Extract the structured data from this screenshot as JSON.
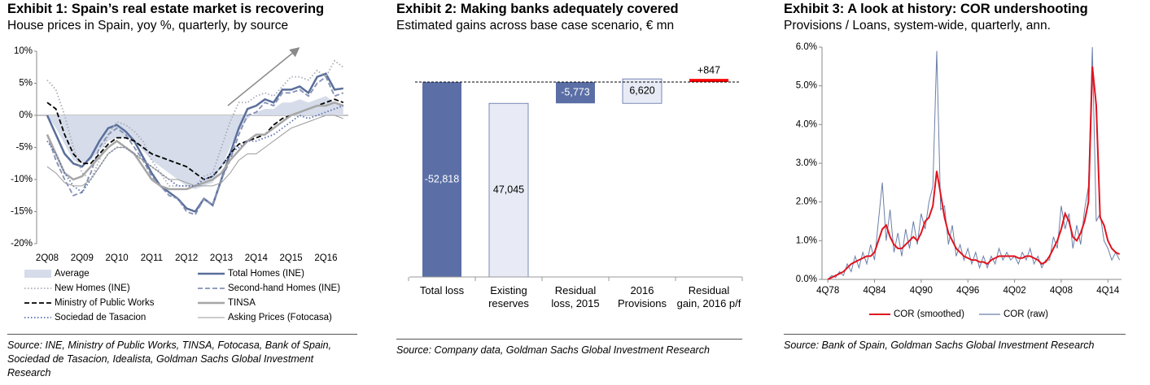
{
  "chart_data": [
    {
      "type": "line",
      "title": "Exhibit 1: Spain’s real estate market is recovering",
      "subtitle": "House prices in Spain, yoy %, quarterly, by source",
      "source": "Source: INE, Ministry of Public Works, TINSA, Fotocasa, Bank of Spain, Sociedad de Tasacion, Idealista, Goldman Sachs Global Investment Research",
      "categories": [
        "2Q08",
        null,
        null,
        null,
        "2Q09",
        null,
        null,
        null,
        "2Q10",
        null,
        null,
        null,
        "2Q11",
        null,
        null,
        null,
        "2Q12",
        null,
        null,
        null,
        "2Q13",
        null,
        null,
        null,
        "2Q14",
        null,
        null,
        null,
        "2Q15",
        null,
        null,
        null,
        "2Q16",
        null,
        null
      ],
      "ylim": [
        -20,
        10
      ],
      "yticks": [
        {
          "value": 10,
          "label": "10%"
        },
        {
          "value": 5,
          "label": "5%"
        },
        {
          "value": 0,
          "label": "0%"
        },
        {
          "value": -5,
          "label": "-5%"
        },
        {
          "value": -10,
          "label": "-10%"
        },
        {
          "value": -15,
          "label": "-15%"
        },
        {
          "value": -20,
          "label": "-20%"
        }
      ],
      "series": [
        {
          "name": "Average",
          "color": "#d6dcea",
          "style": "area",
          "values": [
            0,
            -2,
            -4.5,
            -7,
            -7.5,
            -7,
            -5.5,
            -4,
            -3.5,
            -3.5,
            -4,
            -5.5,
            -7,
            -8,
            -9,
            -10,
            -11,
            -11.5,
            -11,
            -10.5,
            -8,
            -5,
            -2.5,
            -0.5,
            0.5,
            1,
            1,
            2,
            2,
            2.5,
            2,
            2.5,
            3,
            2,
            1.5
          ]
        },
        {
          "name": "Total Homes (INE)",
          "color": "#5a6f9b",
          "style": "solid",
          "values": [
            0,
            -3,
            -6,
            -7.5,
            -8,
            -6.5,
            -4,
            -2,
            -1.5,
            -2.5,
            -4,
            -6.5,
            -9,
            -11,
            -12,
            -13,
            -14.5,
            -15,
            -13,
            -14,
            -10,
            -6,
            -2,
            1,
            1.5,
            2.5,
            2,
            4,
            4,
            4.5,
            3.5,
            6,
            6.5,
            4,
            4.2
          ]
        },
        {
          "name": "New Homes (INE)",
          "color": "#a8acb8",
          "style": "dotted",
          "values": [
            5.5,
            4,
            0,
            -5,
            -9,
            -10,
            -7,
            -3,
            -1,
            -1.5,
            -2.5,
            -4,
            -7,
            -9,
            -11,
            -11,
            -11,
            -11,
            -9.5,
            -9,
            -5,
            -1,
            2,
            2,
            3,
            3.5,
            3,
            4.5,
            6,
            6,
            5.5,
            7,
            6,
            8.5,
            7.5
          ]
        },
        {
          "name": "Second-hand Homes (INE)",
          "color": "#8490b4",
          "style": "dashed",
          "values": [
            -3,
            -7,
            -10,
            -12.5,
            -12,
            -9,
            -5,
            -3,
            -2,
            -3,
            -5,
            -7,
            -9.5,
            -11,
            -12.5,
            -13,
            -15,
            -15.5,
            -13,
            -14,
            -10,
            -7,
            -3,
            0,
            0.5,
            2,
            1.5,
            3.5,
            3.5,
            4,
            3,
            5,
            6,
            3,
            3.5
          ]
        },
        {
          "name": "Ministry of Public Works",
          "color": "#000000",
          "style": "dashed",
          "values": [
            2,
            1,
            -3,
            -6,
            -7.5,
            -7.5,
            -6,
            -4.5,
            -3.5,
            -3.5,
            -4,
            -5,
            -6,
            -6.5,
            -7,
            -7.5,
            -8,
            -9,
            -10,
            -9.5,
            -8,
            -6,
            -4.5,
            -4,
            -3.5,
            -3,
            -1.5,
            -0.5,
            0,
            0.5,
            1,
            1.5,
            2,
            2.5,
            2
          ]
        },
        {
          "name": "TINSA",
          "color": "#a6a6a6",
          "style": "thick",
          "values": [
            -3,
            -6,
            -9,
            -10,
            -9.5,
            -8,
            -6.5,
            -5,
            -4,
            -5,
            -6,
            -8,
            -10,
            -11,
            -11.5,
            -11.5,
            -11.5,
            -11,
            -10.5,
            -10,
            -9,
            -7,
            -5.5,
            -4,
            -3,
            -3,
            -2,
            -1,
            0,
            0.5,
            1,
            1.5,
            1.5,
            2,
            1.5
          ]
        },
        {
          "name": "Sociedad de Tasacion",
          "color": "#5a6fb0",
          "style": "dotted",
          "values": [
            -4,
            -6,
            -9,
            -11,
            -12,
            -10,
            -8,
            -6,
            -5,
            -5,
            -6,
            -7,
            -8,
            -9,
            -10,
            -11,
            -11,
            -11,
            -10,
            -9.5,
            -8,
            -6,
            -5,
            -4,
            -4,
            -3.5,
            -3,
            -2,
            -1,
            0,
            -0.5,
            0,
            0.5,
            1,
            1.5
          ]
        },
        {
          "name": "Asking Prices (Fotocasa)",
          "color": "#9a9a9a",
          "style": "thin",
          "values": [
            -8,
            -9,
            -10.5,
            -11,
            -11,
            -10,
            -8,
            -6,
            -5,
            -5,
            -6,
            -7,
            -8,
            -9,
            -10,
            -10,
            -10.5,
            -11,
            -11,
            -11,
            -10.5,
            -9,
            -7,
            -6,
            -6,
            -5,
            -4,
            -3,
            -2,
            -1.5,
            -1,
            -0.5,
            0,
            0,
            -0.5
          ]
        }
      ]
    },
    {
      "type": "waterfall",
      "title": "Exhibit 2: Making banks adequately covered",
      "subtitle": "Estimated gains across base case scenario, € mn",
      "source": "Source: Company data, Goldman Sachs Global Investment Research",
      "categories": [
        "Total loss",
        "Existing reserves",
        "Residual loss, 2015",
        "2016 Provisions",
        "Residual gain, 2016 p/f"
      ],
      "values": [
        -52818,
        47045,
        -5773,
        6620,
        847
      ],
      "value_labels": [
        "-52,818",
        "47,045",
        "-5,773",
        "6,620",
        "+847"
      ],
      "bar_kinds": [
        "total",
        "step",
        "total",
        "step",
        "total"
      ],
      "colors": [
        "#5b6fa6",
        "#e8ebf5",
        "#5b6fa6",
        "#e8ebf5",
        "#ff0000"
      ]
    },
    {
      "type": "line",
      "title": "Exhibit 3: A look at history: COR undershooting",
      "subtitle": "Provisions / Loans, system-wide, quarterly, ann.",
      "source": "Source: Bank of Spain, Goldman Sachs Global Investment Research",
      "x": [
        1978.75,
        1979.25,
        1979.75,
        1980.25,
        1980.75,
        1981.25,
        1981.75,
        1982.25,
        1982.75,
        1983.25,
        1983.75,
        1984.25,
        1984.75,
        1985.25,
        1985.75,
        1986.25,
        1986.75,
        1987.25,
        1987.75,
        1988.25,
        1988.75,
        1989.25,
        1989.75,
        1990.25,
        1990.75,
        1991.25,
        1991.75,
        1992.25,
        1992.75,
        1993.25,
        1993.75,
        1994.25,
        1994.75,
        1995.25,
        1995.75,
        1996.25,
        1996.75,
        1997.25,
        1997.75,
        1998.25,
        1998.75,
        1999.25,
        1999.75,
        2000.25,
        2000.75,
        2001.25,
        2001.75,
        2002.25,
        2002.75,
        2003.25,
        2003.75,
        2004.25,
        2004.75,
        2005.25,
        2005.75,
        2006.25,
        2006.75,
        2007.25,
        2007.75,
        2008.25,
        2008.75,
        2009.25,
        2009.75,
        2010.25,
        2010.75,
        2011.25,
        2011.75,
        2012.25,
        2012.75,
        2013.25,
        2013.75,
        2014.25,
        2014.75,
        2015.25,
        2015.75,
        2016.25
      ],
      "xlim": [
        1978,
        2016.5
      ],
      "xticks": [
        {
          "value": 1978.75,
          "label": "4Q78"
        },
        {
          "value": 1984.75,
          "label": "4Q84"
        },
        {
          "value": 1990.75,
          "label": "4Q90"
        },
        {
          "value": 1996.75,
          "label": "4Q96"
        },
        {
          "value": 2002.75,
          "label": "4Q02"
        },
        {
          "value": 2008.75,
          "label": "4Q08"
        },
        {
          "value": 2014.75,
          "label": "4Q14"
        }
      ],
      "ylim": [
        0,
        6
      ],
      "yticks": [
        {
          "value": 0,
          "label": "0.0%"
        },
        {
          "value": 1,
          "label": "1.0%"
        },
        {
          "value": 2,
          "label": "2.0%"
        },
        {
          "value": 3,
          "label": "3.0%"
        },
        {
          "value": 4,
          "label": "4.0%"
        },
        {
          "value": 5,
          "label": "5.0%"
        },
        {
          "value": 6,
          "label": "6.0%"
        }
      ],
      "series": [
        {
          "name": "COR (smoothed)",
          "color": "#e0141e",
          "values": [
            0,
            0.05,
            0.1,
            0.15,
            0.2,
            0.3,
            0.4,
            0.45,
            0.5,
            0.55,
            0.6,
            0.6,
            0.7,
            1.0,
            1.3,
            1.4,
            1.1,
            0.9,
            0.8,
            0.8,
            0.9,
            1.0,
            1.1,
            1.0,
            1.2,
            1.5,
            1.6,
            1.9,
            2.8,
            2.2,
            1.6,
            1.2,
            1.0,
            0.8,
            0.7,
            0.6,
            0.55,
            0.5,
            0.5,
            0.45,
            0.45,
            0.4,
            0.5,
            0.55,
            0.6,
            0.6,
            0.6,
            0.6,
            0.6,
            0.55,
            0.55,
            0.6,
            0.6,
            0.55,
            0.5,
            0.4,
            0.45,
            0.6,
            0.8,
            1.0,
            1.3,
            1.7,
            1.5,
            1.1,
            1.0,
            1.2,
            1.5,
            2.0,
            5.5,
            4.5,
            1.6,
            1.4,
            1.0,
            0.8,
            0.7,
            0.65
          ]
        },
        {
          "name": "COR (raw)",
          "color": "#6b7fa8",
          "values": [
            0,
            0.1,
            0.05,
            0.2,
            0.1,
            0.4,
            0.2,
            0.6,
            0.3,
            0.7,
            0.4,
            0.9,
            0.5,
            1.5,
            2.5,
            1.0,
            1.8,
            0.7,
            1.2,
            0.6,
            1.3,
            0.8,
            1.5,
            0.9,
            1.7,
            1.3,
            2.0,
            2.4,
            5.9,
            1.8,
            1.9,
            0.9,
            1.4,
            0.6,
            0.9,
            0.5,
            0.8,
            0.4,
            0.7,
            0.3,
            0.6,
            0.3,
            0.6,
            0.4,
            0.8,
            0.5,
            0.7,
            0.5,
            0.6,
            0.4,
            0.7,
            0.5,
            0.8,
            0.4,
            0.6,
            0.3,
            0.5,
            0.5,
            1.1,
            0.8,
            1.9,
            1.3,
            1.7,
            0.8,
            1.4,
            0.9,
            1.8,
            2.4,
            6.0,
            1.5,
            1.7,
            1.0,
            0.8,
            0.5,
            0.7,
            0.5
          ]
        }
      ]
    }
  ]
}
